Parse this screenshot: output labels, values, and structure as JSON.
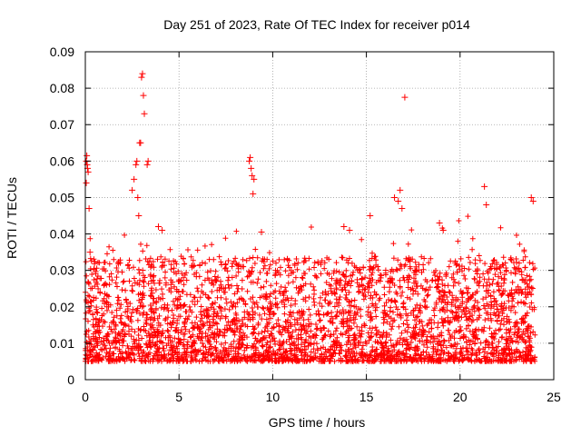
{
  "chart_data": {
    "type": "scatter",
    "title": "Day 251 of 2023, Rate Of TEC Index for receiver p014",
    "xlabel": "GPS time / hours",
    "ylabel": "ROTI / TECUs",
    "xlim": [
      0,
      25
    ],
    "ylim": [
      0,
      0.09
    ],
    "xticks": [
      0,
      5,
      10,
      15,
      20,
      25
    ],
    "xtick_labels": [
      "0",
      "5",
      "10",
      "15",
      "20",
      "25"
    ],
    "yticks": [
      0,
      0.01,
      0.02,
      0.03,
      0.04,
      0.05,
      0.06,
      0.07,
      0.08,
      0.09
    ],
    "ytick_labels": [
      "0",
      "0.01",
      "0.02",
      "0.03",
      "0.04",
      "0.05",
      "0.06",
      "0.07",
      "0.08",
      "0.09"
    ],
    "grid": true,
    "marker": "+",
    "color": "#ff0000",
    "series": [
      {
        "name": "ROTI",
        "x": [
          0.05,
          0.1,
          0.12,
          0.15,
          0.2,
          0.25,
          0.05,
          0.08,
          2.5,
          2.6,
          2.7,
          2.75,
          2.8,
          2.85,
          2.9,
          2.95,
          3.0,
          3.05,
          3.1,
          3.15,
          3.3,
          3.35,
          8.75,
          8.8,
          8.85,
          8.9,
          8.95,
          9.0,
          9.4,
          17.05,
          16.7,
          16.8,
          16.9,
          16.5,
          15.2,
          21.3,
          21.4,
          23.8,
          23.9,
          18.9,
          19.1,
          3.9,
          4.1,
          13.8,
          14.1
        ],
        "y": [
          0.06,
          0.059,
          0.058,
          0.057,
          0.047,
          0.035,
          0.054,
          0.0615,
          0.052,
          0.055,
          0.059,
          0.06,
          0.05,
          0.045,
          0.065,
          0.065,
          0.083,
          0.084,
          0.078,
          0.073,
          0.059,
          0.06,
          0.06,
          0.061,
          0.058,
          0.056,
          0.051,
          0.055,
          0.0405,
          0.0775,
          0.049,
          0.052,
          0.047,
          0.05,
          0.045,
          0.053,
          0.048,
          0.05,
          0.049,
          0.043,
          0.041,
          0.042,
          0.041,
          0.042,
          0.041
        ],
        "bulk": {
          "x_range": [
            0,
            24
          ],
          "typical_range": [
            0.005,
            0.03
          ],
          "median": 0.013
        }
      }
    ]
  }
}
